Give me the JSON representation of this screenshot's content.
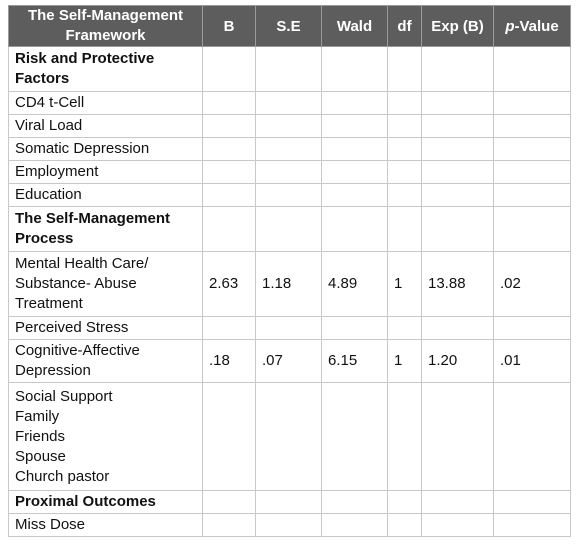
{
  "table": {
    "headers": {
      "framework": "The Self-Management\nFramework",
      "b": "B",
      "se": "S.E",
      "wald": "Wald",
      "df": "df",
      "expb": "Exp (B)",
      "pvalue_italic": "p",
      "pvalue_rest": "-Value"
    },
    "rows": [
      {
        "label": "Risk and Protective\nFactors",
        "section": true
      },
      {
        "label": "CD4 t-Cell"
      },
      {
        "label": "Viral Load"
      },
      {
        "label": "Somatic Depression"
      },
      {
        "label": "Employment"
      },
      {
        "label": "Education"
      },
      {
        "label": "The Self-Management\nProcess",
        "section": true
      },
      {
        "label": "Mental Health Care/\nSubstance- Abuse\nTreatment",
        "b": "2.63",
        "se": "1.18",
        "wald": "4.89",
        "df": "1",
        "expb": "13.88",
        "p": ".02"
      },
      {
        "label": "Perceived Stress"
      },
      {
        "label": "Cognitive-Affective\nDepression",
        "b": ".18",
        "se": ".07",
        "wald": "6.15",
        "df": "1",
        "expb": "1.20",
        "p": ".01"
      },
      {
        "label": "Social Support\nFamily\nFriends\nSpouse\nChurch pastor"
      },
      {
        "label": "Proximal Outcomes",
        "section": true
      },
      {
        "label": "Miss Dose"
      }
    ]
  }
}
